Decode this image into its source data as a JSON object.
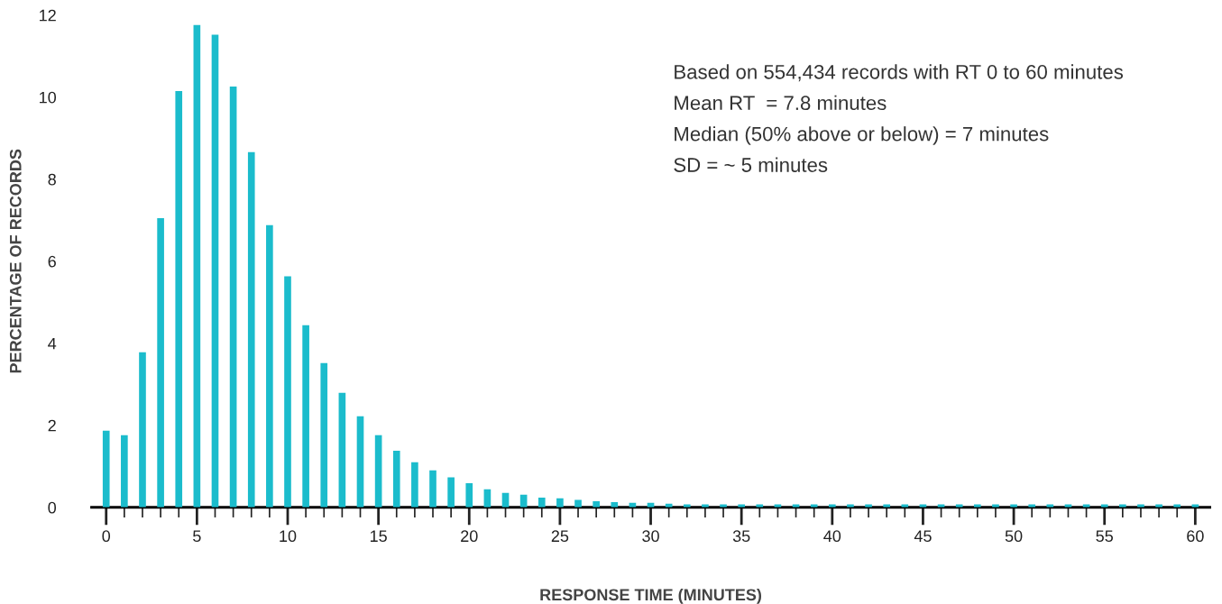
{
  "chart_data": {
    "type": "bar",
    "xlabel": "RESPONSE TIME (MINUTES)",
    "ylabel": "PERCENTAGE OF RECORDS",
    "annotations": [
      "Based on 554,434 records with RT 0 to 60 minutes",
      "Mean RT  = 7.8 minutes",
      "Median (50% above or below) = 7 minutes",
      "SD = ~ 5 minutes"
    ],
    "x": [
      0,
      1,
      2,
      3,
      4,
      5,
      6,
      7,
      8,
      9,
      10,
      11,
      12,
      13,
      14,
      15,
      16,
      17,
      18,
      19,
      20,
      21,
      22,
      23,
      24,
      25,
      26,
      27,
      28,
      29,
      30,
      31,
      32,
      33,
      34,
      35,
      36,
      37,
      38,
      39,
      40,
      41,
      42,
      43,
      44,
      45,
      46,
      47,
      48,
      49,
      50,
      51,
      52,
      53,
      54,
      55,
      56,
      57,
      58,
      59,
      60
    ],
    "values": [
      1.87,
      1.76,
      3.78,
      7.05,
      10.15,
      11.76,
      11.52,
      10.26,
      8.66,
      6.88,
      5.63,
      4.44,
      3.52,
      2.79,
      2.22,
      1.76,
      1.38,
      1.1,
      0.9,
      0.73,
      0.59,
      0.44,
      0.35,
      0.31,
      0.24,
      0.22,
      0.18,
      0.15,
      0.13,
      0.11,
      0.11,
      0.09,
      0.07,
      0.07,
      0.07,
      0.07,
      0.07,
      0.07,
      0.07,
      0.07,
      0.07,
      0.07,
      0.07,
      0.07,
      0.07,
      0.07,
      0.07,
      0.07,
      0.07,
      0.07,
      0.07,
      0.07,
      0.07,
      0.07,
      0.07,
      0.07,
      0.07,
      0.07,
      0.07,
      0.07,
      0.07
    ],
    "color": "#1bbccc",
    "xlim": [
      -0.8,
      60.8
    ],
    "xticks": [
      0,
      {
        "value": 1,
        "label": null
      },
      {
        "value": 2,
        "label": null
      },
      {
        "value": 3,
        "label": null
      },
      {
        "value": 4,
        "label": null
      },
      5,
      {
        "value": 6,
        "label": null
      },
      {
        "value": 7,
        "label": null
      },
      {
        "value": 8,
        "label": null
      },
      {
        "value": 9,
        "label": null
      },
      10,
      {
        "value": 11,
        "label": null
      },
      {
        "value": 12,
        "label": null
      },
      {
        "value": 13,
        "label": null
      },
      {
        "value": 14,
        "label": null
      },
      15,
      {
        "value": 16,
        "label": null
      },
      {
        "value": 17,
        "label": null
      },
      {
        "value": 18,
        "label": null
      },
      {
        "value": 19,
        "label": null
      },
      20,
      {
        "value": 21,
        "label": null
      },
      {
        "value": 22,
        "label": null
      },
      {
        "value": 23,
        "label": null
      },
      {
        "value": 24,
        "label": null
      },
      25,
      {
        "value": 26,
        "label": null
      },
      {
        "value": 27,
        "label": null
      },
      {
        "value": 28,
        "label": null
      },
      {
        "value": 29,
        "label": null
      },
      30,
      {
        "value": 31,
        "label": null
      },
      {
        "value": 32,
        "label": null
      },
      {
        "value": 33,
        "label": null
      },
      {
        "value": 34,
        "label": null
      },
      35,
      {
        "value": 36,
        "label": null
      },
      {
        "value": 37,
        "label": null
      },
      {
        "value": 38,
        "label": null
      },
      {
        "value": 39,
        "label": null
      },
      40,
      {
        "value": 41,
        "label": null
      },
      {
        "value": 42,
        "label": null
      },
      {
        "value": 43,
        "label": null
      },
      {
        "value": 44,
        "label": null
      },
      45,
      {
        "value": 46,
        "label": null
      },
      {
        "value": 47,
        "label": null
      },
      {
        "value": 48,
        "label": null
      },
      {
        "value": 49,
        "label": null
      },
      50,
      {
        "value": 51,
        "label": null
      },
      {
        "value": 52,
        "label": null
      },
      {
        "value": 53,
        "label": null
      },
      {
        "value": 54,
        "label": null
      },
      55,
      {
        "value": 56,
        "label": null
      },
      {
        "value": 57,
        "label": null
      },
      {
        "value": 58,
        "label": null
      },
      {
        "value": 59,
        "label": null
      },
      60
    ],
    "ylim": [
      0,
      12
    ],
    "yticks": [
      0,
      2,
      4,
      6,
      8,
      10,
      12
    ],
    "grid": false,
    "legend": false
  }
}
